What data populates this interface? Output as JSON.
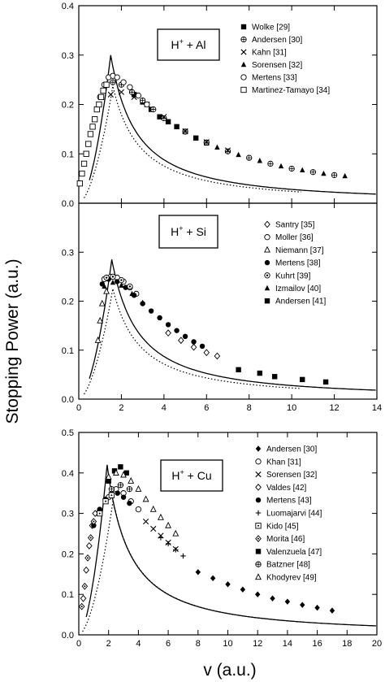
{
  "figure": {
    "ylabel": "Stopping Power (a.u.)",
    "xlabel": "v (a.u.)",
    "colors": {
      "ink": "#000000",
      "background": "#ffffff"
    }
  },
  "chart_data": [
    {
      "type": "scatter",
      "label_main": "H",
      "label_sup": "+",
      "label_rest": " + Al",
      "xlim": [
        0,
        14
      ],
      "ylim": [
        0,
        0.4
      ],
      "xticks": [
        0,
        2,
        4,
        6,
        8,
        10,
        12,
        14
      ],
      "yticks": [
        "0.0",
        "0.1",
        "0.2",
        "0.3",
        "0.4"
      ],
      "show_xtick_labels": false,
      "series": [
        {
          "name": "Wolke [29]",
          "marker": "square",
          "points": [
            [
              2.6,
              0.22
            ],
            [
              3.0,
              0.205
            ],
            [
              3.4,
              0.19
            ],
            [
              3.8,
              0.175
            ],
            [
              4.2,
              0.165
            ],
            [
              4.6,
              0.155
            ],
            [
              5.0,
              0.145
            ],
            [
              5.5,
              0.132
            ],
            [
              6.0,
              0.122
            ]
          ]
        },
        {
          "name": "Andersen [30]",
          "marker": "circle-cross",
          "points": [
            [
              1.6,
              0.245
            ],
            [
              2.0,
              0.24
            ],
            [
              2.5,
              0.225
            ],
            [
              3.0,
              0.208
            ],
            [
              3.5,
              0.19
            ],
            [
              4.0,
              0.172
            ],
            [
              5.0,
              0.145
            ],
            [
              6.0,
              0.123
            ],
            [
              7.0,
              0.105
            ],
            [
              8.0,
              0.092
            ],
            [
              9.0,
              0.08
            ],
            [
              10.0,
              0.07
            ],
            [
              11.0,
              0.063
            ],
            [
              12.0,
              0.057
            ]
          ]
        },
        {
          "name": "Kahn [31]",
          "marker": "x",
          "points": [
            [
              1.5,
              0.22
            ],
            [
              2.0,
              0.225
            ],
            [
              2.6,
              0.215
            ],
            [
              3.2,
              0.2
            ],
            [
              4.0,
              0.175
            ],
            [
              5.0,
              0.146
            ],
            [
              6.0,
              0.124
            ],
            [
              7.0,
              0.107
            ]
          ]
        },
        {
          "name": "Sorensen [32]",
          "marker": "triangle",
          "points": [
            [
              6.5,
              0.113
            ],
            [
              7.5,
              0.098
            ],
            [
              8.5,
              0.086
            ],
            [
              9.5,
              0.075
            ],
            [
              10.5,
              0.067
            ],
            [
              11.5,
              0.06
            ],
            [
              12.5,
              0.055
            ]
          ]
        },
        {
          "name": "Mertens [33]",
          "marker": "circle-open",
          "points": [
            [
              1.0,
              0.215
            ],
            [
              1.2,
              0.24
            ],
            [
              1.4,
              0.255
            ],
            [
              1.6,
              0.258
            ],
            [
              1.8,
              0.255
            ],
            [
              2.1,
              0.245
            ],
            [
              2.4,
              0.235
            ],
            [
              2.8,
              0.218
            ],
            [
              3.2,
              0.2
            ]
          ]
        },
        {
          "name": "Martinez-Tamayo [34]",
          "marker": "square-open",
          "points": [
            [
              0.05,
              0.04
            ],
            [
              0.15,
              0.06
            ],
            [
              0.25,
              0.08
            ],
            [
              0.35,
              0.1
            ],
            [
              0.45,
              0.12
            ],
            [
              0.55,
              0.14
            ],
            [
              0.65,
              0.155
            ],
            [
              0.75,
              0.17
            ],
            [
              0.85,
              0.19
            ],
            [
              0.95,
              0.2
            ],
            [
              1.05,
              0.215
            ],
            [
              1.15,
              0.228
            ],
            [
              1.3,
              0.24
            ]
          ]
        }
      ]
    },
    {
      "type": "scatter",
      "label_main": "H",
      "label_sup": "+",
      "label_rest": " + Si",
      "xlim": [
        0,
        14
      ],
      "ylim": [
        0,
        0.4
      ],
      "xticks": [
        "0",
        "2",
        "4",
        "6",
        "8",
        "10",
        "12",
        "14"
      ],
      "yticks": [
        "0.0",
        "0.1",
        "0.2",
        "0.3"
      ],
      "show_xtick_labels": true,
      "series": [
        {
          "name": "Santry [35]",
          "marker": "diamond-open",
          "points": [
            [
              4.2,
              0.135
            ],
            [
              4.8,
              0.12
            ],
            [
              5.4,
              0.106
            ],
            [
              6.0,
              0.095
            ],
            [
              6.5,
              0.088
            ]
          ]
        },
        {
          "name": "Moller [36]",
          "marker": "circle-open",
          "points": [
            [
              1.2,
              0.245
            ],
            [
              1.5,
              0.25
            ],
            [
              1.8,
              0.248
            ],
            [
              2.1,
              0.24
            ],
            [
              2.4,
              0.228
            ],
            [
              2.7,
              0.215
            ]
          ]
        },
        {
          "name": "Niemann [37]",
          "marker": "triangle-open",
          "points": [
            [
              0.9,
              0.12
            ],
            [
              1.0,
              0.16
            ],
            [
              1.1,
              0.195
            ],
            [
              1.3,
              0.22
            ]
          ]
        },
        {
          "name": "Mertens [38]",
          "marker": "circle",
          "points": [
            [
              1.1,
              0.235
            ],
            [
              1.4,
              0.245
            ],
            [
              1.8,
              0.24
            ],
            [
              2.2,
              0.228
            ],
            [
              2.6,
              0.212
            ],
            [
              3.0,
              0.195
            ],
            [
              3.4,
              0.18
            ],
            [
              3.8,
              0.166
            ],
            [
              4.2,
              0.152
            ],
            [
              4.6,
              0.14
            ],
            [
              5.0,
              0.128
            ],
            [
              5.4,
              0.117
            ],
            [
              5.8,
              0.108
            ]
          ]
        },
        {
          "name": "Kuhrt [39]",
          "marker": "circle-dot",
          "points": [
            [
              1.3,
              0.248
            ],
            [
              1.6,
              0.25
            ],
            [
              2.0,
              0.243
            ],
            [
              2.4,
              0.23
            ]
          ]
        },
        {
          "name": "Izmailov [40]",
          "marker": "triangle",
          "points": [
            [
              1.2,
              0.23
            ],
            [
              1.6,
              0.238
            ],
            [
              2.0,
              0.232
            ],
            [
              2.5,
              0.215
            ],
            [
              3.0,
              0.197
            ]
          ]
        },
        {
          "name": "Andersen [41]",
          "marker": "square",
          "points": [
            [
              7.5,
              0.06
            ],
            [
              8.5,
              0.053
            ],
            [
              9.2,
              0.046
            ],
            [
              10.5,
              0.04
            ],
            [
              11.6,
              0.035
            ]
          ]
        }
      ]
    },
    {
      "type": "scatter",
      "label_main": "H",
      "label_sup": "+",
      "label_rest": " + Cu",
      "xlim": [
        0,
        20
      ],
      "ylim": [
        0,
        0.5
      ],
      "xticks": [
        "0",
        "2",
        "4",
        "6",
        "8",
        "10",
        "12",
        "14",
        "16",
        "18",
        "20"
      ],
      "yticks": [
        "0.0",
        "0.1",
        "0.2",
        "0.3",
        "0.4",
        "0.5"
      ],
      "show_xtick_labels": true,
      "series": [
        {
          "name": "Andersen [30]",
          "marker": "diamond",
          "points": [
            [
              8.0,
              0.155
            ],
            [
              9.0,
              0.14
            ],
            [
              10.0,
              0.125
            ],
            [
              11.0,
              0.112
            ],
            [
              12.0,
              0.1
            ],
            [
              13.0,
              0.09
            ],
            [
              14.0,
              0.082
            ],
            [
              15.0,
              0.074
            ],
            [
              16.0,
              0.067
            ],
            [
              17.0,
              0.06
            ]
          ]
        },
        {
          "name": "Khan [31]",
          "marker": "circle-open",
          "points": [
            [
              2.0,
              0.34
            ],
            [
              2.5,
              0.36
            ],
            [
              3.0,
              0.35
            ],
            [
              3.5,
              0.33
            ],
            [
              4.0,
              0.31
            ]
          ]
        },
        {
          "name": "Sorensen [32]",
          "marker": "x",
          "points": [
            [
              4.5,
              0.28
            ],
            [
              5.0,
              0.262
            ],
            [
              5.5,
              0.245
            ],
            [
              6.0,
              0.228
            ],
            [
              6.5,
              0.212
            ]
          ]
        },
        {
          "name": "Valdes [42]",
          "marker": "diamond-open",
          "points": [
            [
              0.3,
              0.09
            ],
            [
              0.5,
              0.16
            ],
            [
              0.7,
              0.22
            ],
            [
              0.9,
              0.27
            ],
            [
              1.1,
              0.3
            ]
          ]
        },
        {
          "name": "Mertens [43]",
          "marker": "circle",
          "points": [
            [
              1.0,
              0.27
            ],
            [
              1.4,
              0.31
            ],
            [
              1.8,
              0.335
            ],
            [
              2.2,
              0.35
            ],
            [
              2.6,
              0.35
            ],
            [
              3.0,
              0.34
            ],
            [
              3.4,
              0.325
            ]
          ]
        },
        {
          "name": "Luomajarvi [44]",
          "marker": "plus",
          "points": [
            [
              5.5,
              0.24
            ],
            [
              6.0,
              0.225
            ],
            [
              6.5,
              0.21
            ],
            [
              7.0,
              0.195
            ]
          ]
        },
        {
          "name": "Kido [45]",
          "marker": "square-dot",
          "points": [
            [
              1.4,
              0.3
            ],
            [
              1.8,
              0.33
            ],
            [
              2.2,
              0.345
            ]
          ]
        },
        {
          "name": "Morita [46]",
          "marker": "diamond-dot",
          "points": [
            [
              0.2,
              0.07
            ],
            [
              0.4,
              0.12
            ],
            [
              0.6,
              0.19
            ],
            [
              0.8,
              0.24
            ],
            [
              1.0,
              0.28
            ]
          ]
        },
        {
          "name": "Valenzuela [47]",
          "marker": "square",
          "points": [
            [
              2.0,
              0.38
            ],
            [
              2.4,
              0.405
            ],
            [
              2.8,
              0.415
            ],
            [
              3.2,
              0.4
            ]
          ]
        },
        {
          "name": "Batzner [48]",
          "marker": "circle-cross",
          "points": [
            [
              2.2,
              0.36
            ],
            [
              2.8,
              0.37
            ],
            [
              3.4,
              0.36
            ]
          ]
        },
        {
          "name": "Khodyrev [49]",
          "marker": "triangle-open",
          "points": [
            [
              2.0,
              0.39
            ],
            [
              2.5,
              0.4
            ],
            [
              3.0,
              0.395
            ],
            [
              3.5,
              0.38
            ],
            [
              4.0,
              0.36
            ],
            [
              4.5,
              0.335
            ],
            [
              5.0,
              0.31
            ],
            [
              5.5,
              0.29
            ],
            [
              6.0,
              0.27
            ],
            [
              6.5,
              0.25
            ]
          ]
        }
      ]
    }
  ]
}
